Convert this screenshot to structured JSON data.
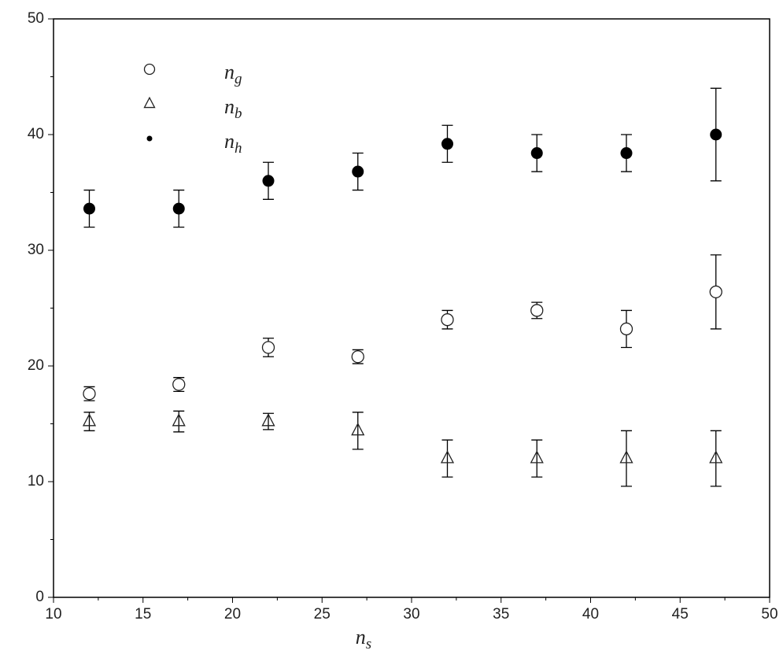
{
  "chart_data": {
    "type": "scatter",
    "x_label": "ns",
    "x": [
      12,
      17,
      22,
      27,
      32,
      37,
      42,
      47
    ],
    "xlim": [
      10,
      50
    ],
    "xticks": [
      10,
      15,
      20,
      25,
      30,
      35,
      40,
      45,
      50
    ],
    "ylim": [
      0,
      50
    ],
    "yticks": [
      0,
      10,
      20,
      30,
      40,
      50
    ],
    "series": [
      {
        "name": "ng",
        "marker": "open-circle",
        "color": "#222222",
        "values": [
          17.6,
          18.4,
          21.6,
          20.8,
          24.0,
          24.8,
          23.2,
          26.4
        ],
        "errors": [
          0.6,
          0.6,
          0.8,
          0.6,
          0.8,
          0.7,
          1.6,
          3.2
        ]
      },
      {
        "name": "nb",
        "marker": "open-triangle",
        "color": "#222222",
        "values": [
          15.2,
          15.2,
          15.2,
          14.4,
          12.0,
          12.0,
          12.0,
          12.0
        ],
        "errors": [
          0.8,
          0.9,
          0.7,
          1.6,
          1.6,
          1.6,
          2.4,
          2.4
        ]
      },
      {
        "name": "nh",
        "marker": "filled-circle",
        "color": "#000000",
        "values": [
          33.6,
          33.6,
          36.0,
          36.8,
          39.2,
          38.4,
          38.4,
          40.0
        ],
        "errors": [
          1.6,
          1.6,
          1.6,
          1.6,
          1.6,
          1.6,
          1.6,
          4.0
        ]
      }
    ]
  }
}
